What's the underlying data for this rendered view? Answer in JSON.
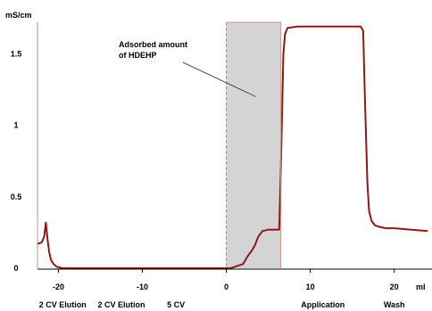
{
  "chart_data": {
    "type": "line",
    "ylabel": "mS/cm",
    "xlabel": "ml",
    "xlim": [
      -22.5,
      24.5
    ],
    "ylim": [
      0,
      1.72
    ],
    "x_ticks": [
      -20,
      -10,
      0,
      10,
      20
    ],
    "y_ticks": [
      0,
      0.5,
      1,
      1.5
    ],
    "x_tick_labels": [
      "-20",
      "-10",
      "0",
      "10",
      "20"
    ],
    "y_tick_labels": [
      "0",
      "0.5",
      "1",
      "1.5"
    ],
    "grid": false,
    "series": [
      {
        "color": "#8b1a1a",
        "x": [
          -22.5,
          -22.0,
          -21.7,
          -21.5,
          -21.3,
          -21.1,
          -20.9,
          -20.6,
          -20.2,
          -19.5,
          -18,
          -10,
          -2,
          -0.2,
          0.0,
          0.5,
          1.0,
          1.5,
          2.0,
          2.3,
          2.6,
          3.0,
          3.4,
          3.8,
          4.3,
          5.0,
          5.8,
          6.3,
          6.5,
          6.8,
          7.0,
          7.3,
          8.5,
          10,
          12,
          14,
          15.5,
          16.0,
          16.3,
          16.5,
          16.8,
          17.0,
          17.3,
          17.7,
          18.2,
          19,
          20,
          22,
          24.0
        ],
        "y": [
          0.17,
          0.18,
          0.22,
          0.32,
          0.2,
          0.11,
          0.06,
          0.03,
          0.01,
          0.0,
          0.0,
          0.0,
          0.0,
          0.0,
          0.0,
          0.0,
          0.01,
          0.02,
          0.03,
          0.06,
          0.09,
          0.12,
          0.16,
          0.22,
          0.26,
          0.27,
          0.27,
          0.27,
          0.7,
          1.5,
          1.64,
          1.68,
          1.69,
          1.69,
          1.69,
          1.69,
          1.69,
          1.69,
          1.66,
          1.2,
          0.6,
          0.4,
          0.33,
          0.3,
          0.29,
          0.28,
          0.28,
          0.27,
          0.26
        ]
      }
    ],
    "shaded_region": {
      "x": [
        0,
        6.5
      ],
      "y": [
        0,
        1.72
      ],
      "color": "#d4d3d5"
    },
    "markers": [
      {
        "x": 0,
        "style": "dashed",
        "color": "#d06cc0"
      },
      {
        "x": -22.5,
        "style": "solid",
        "color": "#c49a8a"
      }
    ],
    "annotations": [
      {
        "text_lines": [
          "Adsorbed amount",
          "of HDEHP"
        ],
        "arrow_target": {
          "x": 3.5,
          "y": 1.2
        }
      }
    ],
    "phase_labels": [
      {
        "text": "2 CV Elution",
        "x": -19.5
      },
      {
        "text": "2 CV Elution",
        "x": -12.5
      },
      {
        "text": "5 CV",
        "x": -6.0
      },
      {
        "text": "Application",
        "x": 11.5
      },
      {
        "text": "Wash",
        "x": 20.0
      }
    ]
  }
}
